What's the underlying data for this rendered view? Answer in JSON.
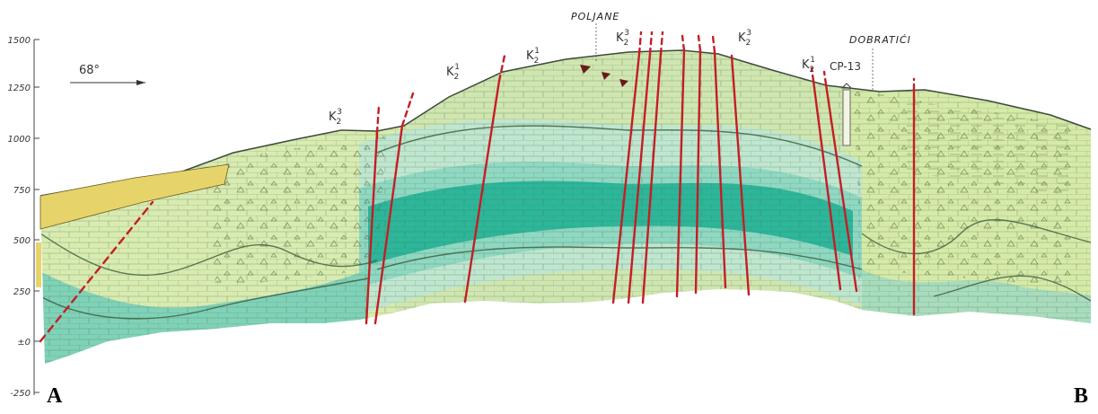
{
  "axis": {
    "ticks": [
      "1500",
      "1250",
      "1000",
      "750",
      "500",
      "250",
      "±0",
      "-250"
    ]
  },
  "orientation": {
    "label": "68°"
  },
  "places": {
    "poljane": "POLJANE",
    "dobratici": "DOBRATIĆI",
    "borehole": "CP-13"
  },
  "units": [
    {
      "base": "K",
      "sub": "2",
      "sup": "3"
    },
    {
      "base": "K",
      "sub": "2",
      "sup": "1"
    },
    {
      "base": "K",
      "sub": "2",
      "sup": "1"
    },
    {
      "base": "K",
      "sub": "2",
      "sup": "3"
    },
    {
      "base": "K",
      "sub": "2",
      "sup": "3"
    },
    {
      "base": "K",
      "sub": "2",
      "sup": "1"
    }
  ],
  "endpoints": {
    "start": "A",
    "end": "B"
  },
  "colors": {
    "k23_light": "#dbe9b4",
    "k23_mid": "#c6df9e",
    "k21_light": "#bfe6cf",
    "k21_mid": "#8fd8c2",
    "k21_dark": "#2cb69a",
    "quaternary": "#e6d46b",
    "fault": "#c41e24"
  }
}
